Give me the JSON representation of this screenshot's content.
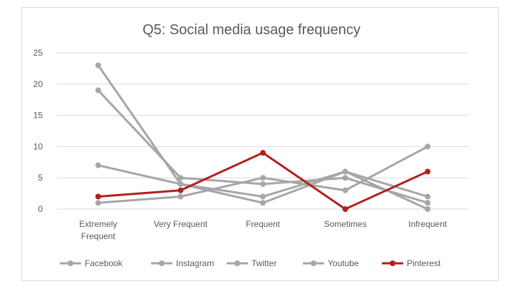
{
  "chart_data": {
    "type": "line",
    "title": "Q5: Social media usage frequency",
    "xlabel": "",
    "ylabel": "",
    "categories": [
      [
        "Extremely",
        "Frequent"
      ],
      [
        "Very Frequent"
      ],
      [
        "Frequent"
      ],
      [
        "Sometimes"
      ],
      [
        "Infrequent"
      ]
    ],
    "yticks": [
      "0",
      "5",
      "10",
      "15",
      "20",
      "25"
    ],
    "ylim": [
      0,
      25
    ],
    "grid": true,
    "legend_position": "bottom",
    "series": [
      {
        "name": "Facebook",
        "values": [
          23,
          4,
          1,
          6,
          0
        ],
        "color": "#a6a6a6"
      },
      {
        "name": "Instagram",
        "values": [
          19,
          5,
          4,
          5,
          1
        ],
        "color": "#a6a6a6"
      },
      {
        "name": "Twitter",
        "values": [
          7,
          4,
          2,
          6,
          2
        ],
        "color": "#a6a6a6"
      },
      {
        "name": "Youtube",
        "values": [
          1,
          2,
          5,
          3,
          10
        ],
        "color": "#a6a6a6"
      },
      {
        "name": "Pinterest",
        "values": [
          2,
          3,
          9,
          0,
          6
        ],
        "color": "#b1201f"
      }
    ]
  }
}
